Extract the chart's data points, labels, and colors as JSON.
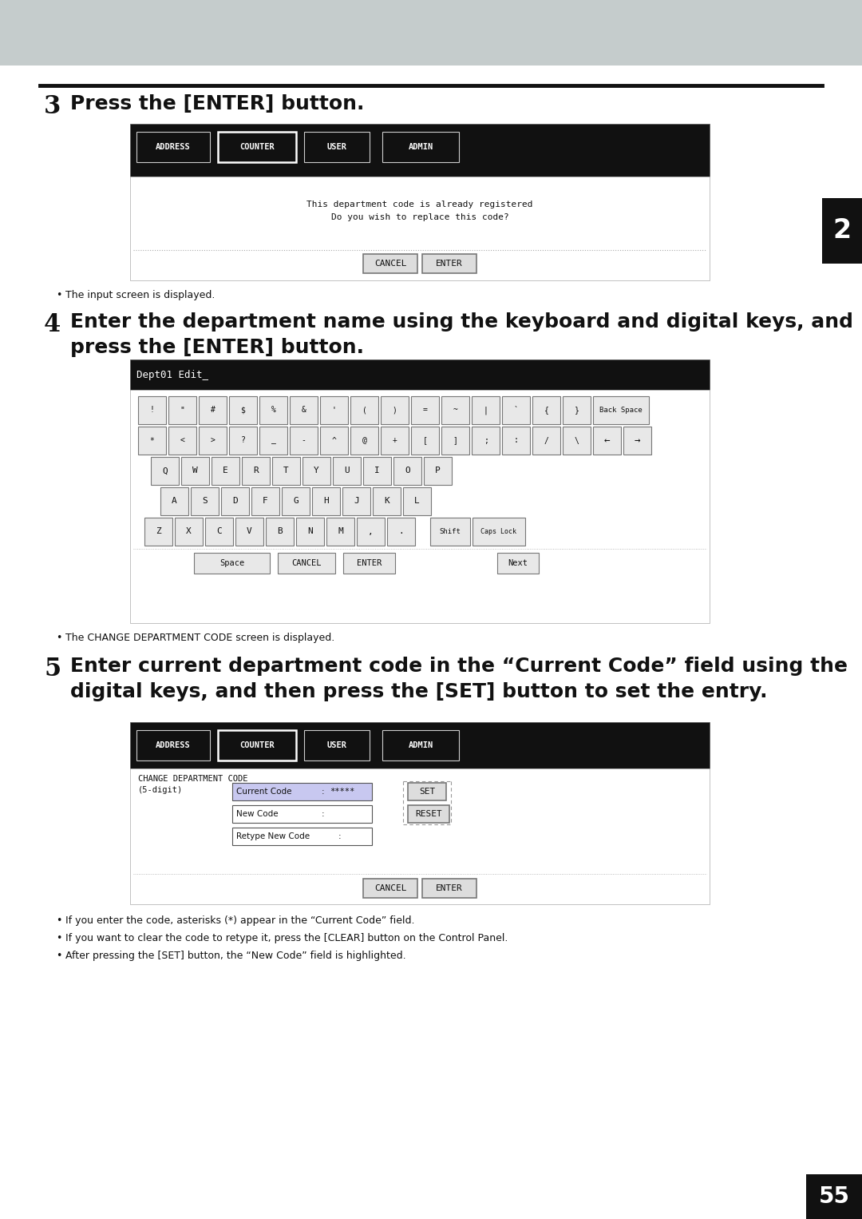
{
  "page_bg": "#ffffff",
  "header_bg": "#c8d0d0",
  "page_number": "55",
  "chapter_number": "2",
  "step3_number": "3",
  "step3_text": "Press the [ENTER] button.",
  "step4_number": "4",
  "step4_line1": "Enter the department name using the keyboard and digital keys, and",
  "step4_line2": "press the [ENTER] button.",
  "step5_number": "5",
  "step5_line1": "Enter current department code in the “Current Code” field using the",
  "step5_line2": "digital keys, and then press the [SET] button to set the entry.",
  "bullet1_step3": "The input screen is displayed.",
  "bullet1_step4": "The CHANGE DEPARTMENT CODE screen is displayed.",
  "bullet1_step5": "If you enter the code, asterisks (*) appear in the “Current Code” field.",
  "bullet2_step5": "If you want to clear the code to retype it, press the [CLEAR] button on the Control Panel.",
  "bullet3_step5": "After pressing the [SET] button, the “New Code” field is highlighted.",
  "tab_address": "ADDRESS",
  "tab_counter": "COUNTER",
  "tab_user": "USER",
  "tab_admin": "ADMIN",
  "screen3_msg1": "This department code is already registered",
  "screen3_msg2": "Do you wish to replace this code?",
  "screen3_btn1": "CANCEL",
  "screen3_btn2": "ENTER",
  "keyboard_header": "Dept01 Edit_",
  "keyboard_row0": [
    "!",
    "\"",
    "#",
    "$",
    "%",
    "&",
    "'",
    "(",
    ")",
    "=",
    "~",
    "|",
    "`",
    "{",
    "}"
  ],
  "keyboard_row1": [
    "*",
    "<",
    ">",
    "?",
    "_",
    "-",
    "^",
    "@",
    "+",
    "[",
    "]",
    ";",
    ":",
    "/",
    "\\"
  ],
  "keyboard_row2": [
    "Q",
    "W",
    "E",
    "R",
    "T",
    "Y",
    "U",
    "I",
    "O",
    "P"
  ],
  "keyboard_row3": [
    "A",
    "S",
    "D",
    "F",
    "G",
    "H",
    "J",
    "K",
    "L"
  ],
  "keyboard_row4": [
    "Z",
    "X",
    "C",
    "V",
    "B",
    "N",
    "M",
    ",",
    "."
  ],
  "screen5_title1": "CHANGE DEPARTMENT CODE",
  "screen5_title2": "(5-digit)",
  "screen5_field1": "Current Code",
  "screen5_field1_val": "*****",
  "screen5_field2": "New Code",
  "screen5_field3": "Retype New Code",
  "screen5_btn_set": "SET",
  "screen5_btn_reset": "RESET",
  "screen5_btn_cancel": "CANCEL",
  "screen5_btn_enter": "ENTER"
}
